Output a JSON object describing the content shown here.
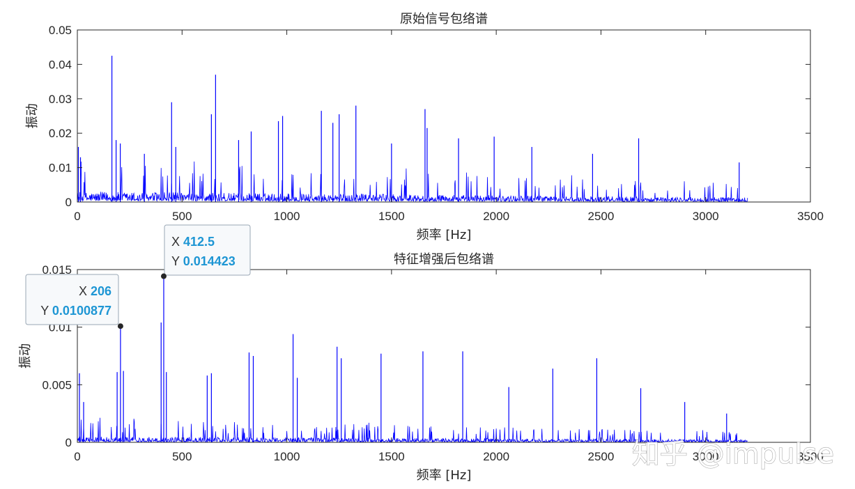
{
  "chart_data": [
    {
      "type": "line",
      "title": "原始信号包络谱",
      "xlabel": "频率 [Hz]",
      "ylabel": "振动",
      "xlim": [
        0,
        3500
      ],
      "ylim": [
        0,
        0.05
      ],
      "xticks": [
        0,
        500,
        1000,
        1500,
        2000,
        2500,
        3000,
        3500
      ],
      "xtick_labels": [
        "0",
        "500",
        "1000",
        "1500",
        "2000",
        "2500",
        "3000",
        "3500"
      ],
      "yticks": [
        0,
        0.01,
        0.02,
        0.03,
        0.04,
        0.05
      ],
      "ytick_labels": [
        "0",
        "0.01",
        "0.02",
        "0.03",
        "0.04",
        "0.05"
      ],
      "grid": false,
      "line_color": "#0000ff",
      "data_xmax": 3200,
      "peaks": [
        {
          "x": 5,
          "y": 0.016
        },
        {
          "x": 15,
          "y": 0.013
        },
        {
          "x": 165,
          "y": 0.0425
        },
        {
          "x": 185,
          "y": 0.018
        },
        {
          "x": 205,
          "y": 0.017
        },
        {
          "x": 320,
          "y": 0.014
        },
        {
          "x": 450,
          "y": 0.029
        },
        {
          "x": 470,
          "y": 0.016
        },
        {
          "x": 640,
          "y": 0.0255
        },
        {
          "x": 660,
          "y": 0.037
        },
        {
          "x": 770,
          "y": 0.018
        },
        {
          "x": 830,
          "y": 0.0205
        },
        {
          "x": 960,
          "y": 0.0235
        },
        {
          "x": 980,
          "y": 0.025
        },
        {
          "x": 1165,
          "y": 0.0265
        },
        {
          "x": 1220,
          "y": 0.023
        },
        {
          "x": 1250,
          "y": 0.0255
        },
        {
          "x": 1330,
          "y": 0.028
        },
        {
          "x": 1500,
          "y": 0.017
        },
        {
          "x": 1660,
          "y": 0.027
        },
        {
          "x": 1670,
          "y": 0.0215
        },
        {
          "x": 1820,
          "y": 0.0185
        },
        {
          "x": 1990,
          "y": 0.019
        },
        {
          "x": 2170,
          "y": 0.016
        },
        {
          "x": 2460,
          "y": 0.014
        },
        {
          "x": 2680,
          "y": 0.0185
        },
        {
          "x": 3160,
          "y": 0.0115
        }
      ]
    },
    {
      "type": "line",
      "title": "特征增强后包络谱",
      "xlabel": "频率 [Hz]",
      "ylabel": "振动",
      "xlim": [
        0,
        3500
      ],
      "ylim": [
        0,
        0.015
      ],
      "xticks": [
        0,
        500,
        1000,
        1500,
        2000,
        2500,
        3000,
        3500
      ],
      "xtick_labels": [
        "0",
        "500",
        "1000",
        "1500",
        "2000",
        "2500",
        "3000",
        "3500"
      ],
      "yticks": [
        0,
        0.005,
        0.01,
        0.015
      ],
      "ytick_labels": [
        "0",
        "0.005",
        "0.01",
        "0.015"
      ],
      "grid": false,
      "line_color": "#0000ff",
      "data_xmax": 3200,
      "peaks": [
        {
          "x": 10,
          "y": 0.006
        },
        {
          "x": 30,
          "y": 0.0035
        },
        {
          "x": 190,
          "y": 0.0061
        },
        {
          "x": 206,
          "y": 0.0100877
        },
        {
          "x": 220,
          "y": 0.0062
        },
        {
          "x": 400,
          "y": 0.0104
        },
        {
          "x": 412.5,
          "y": 0.014423
        },
        {
          "x": 425,
          "y": 0.0061
        },
        {
          "x": 620,
          "y": 0.0058
        },
        {
          "x": 640,
          "y": 0.006
        },
        {
          "x": 820,
          "y": 0.0078
        },
        {
          "x": 840,
          "y": 0.0075
        },
        {
          "x": 1030,
          "y": 0.0094
        },
        {
          "x": 1050,
          "y": 0.0056
        },
        {
          "x": 1240,
          "y": 0.0083
        },
        {
          "x": 1260,
          "y": 0.0073
        },
        {
          "x": 1450,
          "y": 0.0077
        },
        {
          "x": 1650,
          "y": 0.0079
        },
        {
          "x": 1840,
          "y": 0.0079
        },
        {
          "x": 2060,
          "y": 0.0048
        },
        {
          "x": 2270,
          "y": 0.0064
        },
        {
          "x": 2480,
          "y": 0.0073
        },
        {
          "x": 2690,
          "y": 0.0047
        },
        {
          "x": 2900,
          "y": 0.0035
        },
        {
          "x": 3100,
          "y": 0.0025
        }
      ],
      "datatips": [
        {
          "x_label": "X",
          "x_value": "206",
          "y_label": "Y",
          "y_value": "0.0100877",
          "x": 206,
          "y": 0.0100877
        },
        {
          "x_label": "X",
          "x_value": "412.5",
          "y_label": "Y",
          "y_value": "0.014423",
          "x": 412.5,
          "y": 0.014423
        }
      ]
    }
  ],
  "watermark": "知乎 @impulse"
}
